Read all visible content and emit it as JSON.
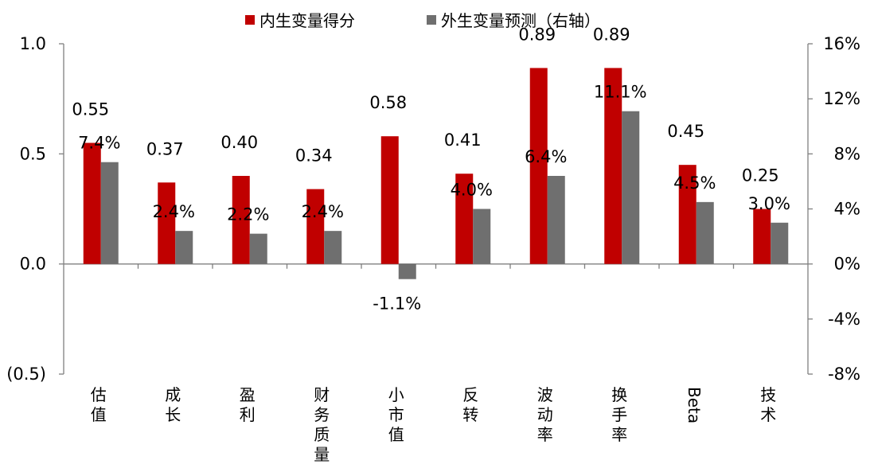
{
  "colors": {
    "series1": "#c00000",
    "series2": "#6f6f6f",
    "axis": "#808080"
  },
  "chart_data": {
    "type": "bar",
    "title": "",
    "legend_position": "top-center",
    "grid": false,
    "categories": [
      "估\n值",
      "成\n长",
      "盈\n利",
      "财\n务\n质\n量",
      "小\n市\n值",
      "反\n转",
      "波\n动\n率",
      "换\n手\n率",
      "Beta",
      "技\n术"
    ],
    "series": [
      {
        "name": "内生变量得分",
        "axis": "left",
        "values": [
          0.55,
          0.37,
          0.4,
          0.34,
          0.58,
          0.41,
          0.89,
          0.89,
          0.45,
          0.25
        ],
        "labels": [
          "0.55",
          "0.37",
          "0.40",
          "0.34",
          "0.58",
          "0.41",
          "0.89",
          "0.89",
          "0.45",
          "0.25"
        ]
      },
      {
        "name": "外生变量预测（右轴）",
        "axis": "right",
        "values": [
          7.4,
          2.4,
          2.2,
          2.4,
          -1.1,
          4.0,
          6.4,
          11.1,
          4.5,
          3.0
        ],
        "labels": [
          "7.4%",
          "2.4%",
          "2.2%",
          "2.4%",
          "-1.1%",
          "4.0%",
          "6.4%",
          "11.1%",
          "4.5%",
          "3.0%"
        ]
      }
    ],
    "y_left": {
      "min": -0.5,
      "max": 1.0,
      "ticks": [
        1.0,
        0.5,
        0.0,
        -0.5
      ],
      "tick_labels": [
        "1.0",
        "0.5",
        "0.0",
        "(0.5)"
      ]
    },
    "y_right": {
      "min": -8,
      "max": 16,
      "ticks": [
        16,
        12,
        8,
        4,
        0,
        -4,
        -8
      ],
      "tick_labels": [
        "16%",
        "12%",
        "8%",
        "4%",
        "0%",
        "-4%",
        "-8%"
      ]
    }
  }
}
